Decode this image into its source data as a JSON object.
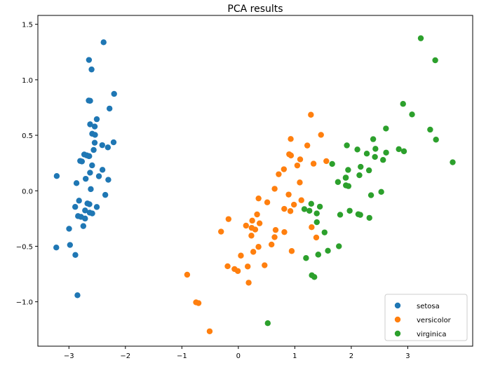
{
  "chart_data": {
    "type": "scatter",
    "title": "PCA results",
    "xlabel": "",
    "ylabel": "",
    "xlim": [
      -3.55,
      4.15
    ],
    "ylim": [
      -1.4,
      1.58
    ],
    "xticks": [
      -3,
      -2,
      -1,
      0,
      1,
      2,
      3
    ],
    "xtick_labels": [
      "−3",
      "−2",
      "−1",
      "0",
      "1",
      "2",
      "3"
    ],
    "yticks": [
      -1.0,
      -0.5,
      0.0,
      0.5,
      1.0,
      1.5
    ],
    "ytick_labels": [
      "−1.0",
      "−0.5",
      "0.0",
      "0.5",
      "1.0",
      "1.5"
    ],
    "grid": false,
    "legend_position": "bottom-right",
    "series": [
      {
        "name": "setosa",
        "color": "#1f77b4",
        "points": [
          [
            -2.684,
            0.319
          ],
          [
            -2.714,
            -0.177
          ],
          [
            -2.889,
            -0.145
          ],
          [
            -2.745,
            -0.318
          ],
          [
            -2.729,
            0.327
          ],
          [
            -2.281,
            0.741
          ],
          [
            -2.821,
            -0.089
          ],
          [
            -2.626,
            0.163
          ],
          [
            -2.886,
            -0.578
          ],
          [
            -2.673,
            -0.114
          ],
          [
            -2.507,
            0.645
          ],
          [
            -2.613,
            0.015
          ],
          [
            -2.786,
            -0.235
          ],
          [
            -3.224,
            -0.511
          ],
          [
            -2.645,
            1.179
          ],
          [
            -2.386,
            1.338
          ],
          [
            -2.624,
            0.811
          ],
          [
            -2.648,
            0.312
          ],
          [
            -2.2,
            0.873
          ],
          [
            -2.588,
            0.514
          ],
          [
            -2.31,
            0.391
          ],
          [
            -2.544,
            0.433
          ],
          [
            -3.216,
            0.133
          ],
          [
            -2.303,
            0.099
          ],
          [
            -2.356,
            -0.037
          ],
          [
            -2.507,
            -0.146
          ],
          [
            -2.469,
            0.131
          ],
          [
            -2.562,
            0.368
          ],
          [
            -2.64,
            0.312
          ],
          [
            -2.632,
            -0.197
          ],
          [
            -2.587,
            -0.204
          ],
          [
            -2.41,
            0.411
          ],
          [
            -2.649,
            0.813
          ],
          [
            -2.599,
            1.093
          ],
          [
            -2.637,
            -0.121
          ],
          [
            -2.866,
            0.069
          ],
          [
            -2.625,
            0.599
          ],
          [
            -2.801,
            0.269
          ],
          [
            -2.981,
            -0.488
          ],
          [
            -2.59,
            0.229
          ],
          [
            -2.77,
            0.264
          ],
          [
            -2.849,
            -0.941
          ],
          [
            -2.997,
            -0.342
          ],
          [
            -2.406,
            0.189
          ],
          [
            -2.209,
            0.437
          ],
          [
            -2.714,
            -0.25
          ],
          [
            -2.538,
            0.504
          ],
          [
            -2.839,
            -0.228
          ],
          [
            -2.543,
            0.579
          ],
          [
            -2.703,
            0.108
          ]
        ]
      },
      {
        "name": "versicolor",
        "color": "#ff7f0e",
        "points": [
          [
            1.285,
            0.685
          ],
          [
            0.932,
            0.318
          ],
          [
            1.464,
            0.504
          ],
          [
            0.183,
            -0.828
          ],
          [
            1.088,
            0.075
          ],
          [
            0.642,
            -0.418
          ],
          [
            1.095,
            0.283
          ],
          [
            -0.749,
            -1.005
          ],
          [
            1.044,
            0.228
          ],
          [
            -0.009,
            -0.723
          ],
          [
            -0.508,
            -1.266
          ],
          [
            0.512,
            -0.104
          ],
          [
            0.265,
            -0.55
          ],
          [
            0.985,
            -0.125
          ],
          [
            -0.174,
            -0.255
          ],
          [
            0.928,
            0.467
          ],
          [
            0.66,
            -0.353
          ],
          [
            0.236,
            -0.334
          ],
          [
            0.945,
            -0.543
          ],
          [
            0.045,
            -0.584
          ],
          [
            1.116,
            -0.085
          ],
          [
            0.358,
            -0.069
          ],
          [
            1.298,
            -0.328
          ],
          [
            0.922,
            -0.183
          ],
          [
            0.715,
            0.149
          ],
          [
            0.9,
            0.329
          ],
          [
            1.332,
            0.244
          ],
          [
            1.558,
            0.267
          ],
          [
            0.813,
            -0.163
          ],
          [
            -0.306,
            -0.368
          ],
          [
            -0.068,
            -0.705
          ],
          [
            -0.19,
            -0.68
          ],
          [
            0.136,
            -0.314
          ],
          [
            1.38,
            -0.421
          ],
          [
            0.588,
            -0.484
          ],
          [
            0.807,
            0.194
          ],
          [
            1.221,
            0.408
          ],
          [
            0.815,
            -0.372
          ],
          [
            0.246,
            -0.269
          ],
          [
            0.166,
            -0.682
          ],
          [
            0.465,
            -0.671
          ],
          [
            0.891,
            -0.034
          ],
          [
            0.231,
            -0.404
          ],
          [
            -0.705,
            -1.012
          ],
          [
            0.357,
            -0.505
          ],
          [
            0.332,
            -0.213
          ],
          [
            0.376,
            -0.293
          ],
          [
            0.643,
            0.018
          ],
          [
            -0.906,
            -0.756
          ],
          [
            0.299,
            -0.349
          ]
        ]
      },
      {
        "name": "virginica",
        "color": "#2ca02c",
        "points": [
          [
            2.531,
            -0.01
          ],
          [
            1.415,
            -0.575
          ],
          [
            2.617,
            0.344
          ],
          [
            1.972,
            -0.18
          ],
          [
            2.35,
            -0.04
          ],
          [
            3.397,
            0.551
          ],
          [
            0.521,
            -1.193
          ],
          [
            2.933,
            0.356
          ],
          [
            2.321,
            -0.244
          ],
          [
            2.917,
            0.783
          ],
          [
            1.662,
            0.242
          ],
          [
            1.803,
            -0.216
          ],
          [
            2.166,
            0.216
          ],
          [
            1.346,
            -0.777
          ],
          [
            1.586,
            -0.54
          ],
          [
            1.904,
            0.119
          ],
          [
            1.95,
            0.042
          ],
          [
            3.487,
            1.176
          ],
          [
            3.796,
            0.257
          ],
          [
            1.301,
            -0.761
          ],
          [
            2.428,
            0.378
          ],
          [
            1.199,
            -0.606
          ],
          [
            3.5,
            0.461
          ],
          [
            1.389,
            -0.204
          ],
          [
            2.275,
            0.335
          ],
          [
            2.614,
            0.561
          ],
          [
            1.259,
            -0.18
          ],
          [
            1.291,
            -0.117
          ],
          [
            2.124,
            -0.211
          ],
          [
            2.388,
            0.465
          ],
          [
            2.842,
            0.375
          ],
          [
            3.231,
            1.374
          ],
          [
            2.159,
            -0.217
          ],
          [
            1.444,
            -0.143
          ],
          [
            1.781,
            -0.5
          ],
          [
            3.076,
            0.688
          ],
          [
            2.144,
            0.14
          ],
          [
            1.905,
            0.049
          ],
          [
            1.169,
            -0.165
          ],
          [
            2.108,
            0.372
          ],
          [
            2.314,
            0.184
          ],
          [
            1.922,
            0.409
          ],
          [
            1.415,
            -0.575
          ],
          [
            2.563,
            0.278
          ],
          [
            2.419,
            0.305
          ],
          [
            1.944,
            0.188
          ],
          [
            1.527,
            -0.375
          ],
          [
            1.764,
            0.079
          ],
          [
            1.901,
            0.117
          ],
          [
            1.39,
            -0.283
          ]
        ]
      }
    ]
  }
}
